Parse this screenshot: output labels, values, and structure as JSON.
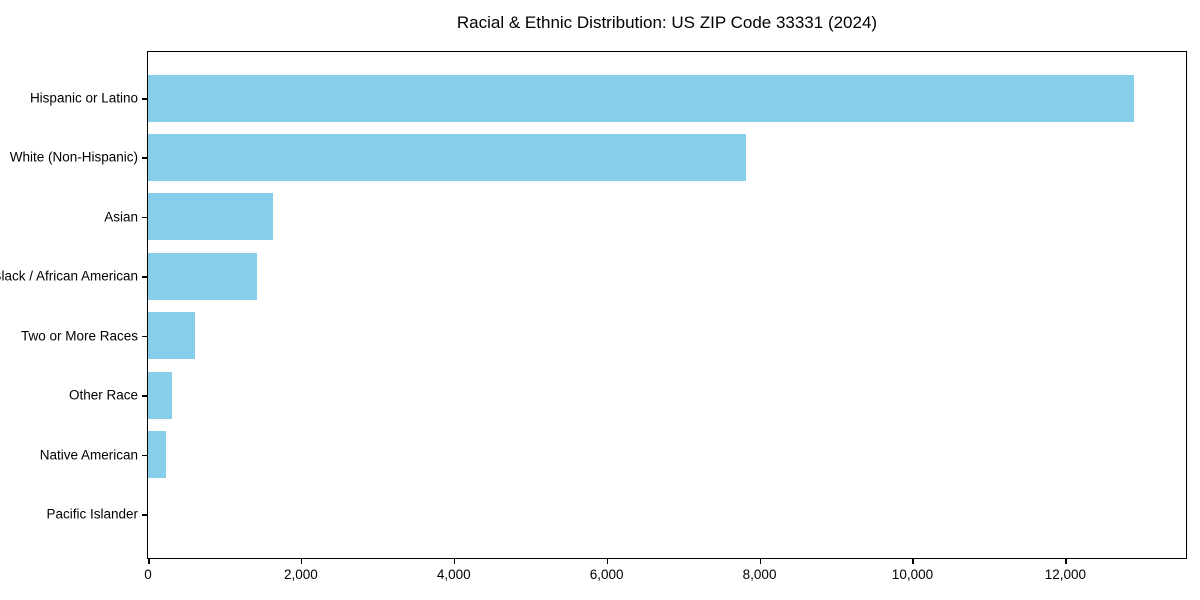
{
  "chart_data": {
    "type": "bar",
    "orientation": "horizontal",
    "title": "Racial & Ethnic Distribution: US ZIP Code 33331 (2024)",
    "categories": [
      "Hispanic or Latino",
      "White (Non-Hispanic)",
      "Asian",
      "Black / African American",
      "Two or More Races",
      "Other Race",
      "Native American",
      "Pacific Islander"
    ],
    "values": [
      12900,
      7820,
      1640,
      1420,
      610,
      310,
      230,
      0
    ],
    "xlabel": "",
    "ylabel": "",
    "xlim": [
      0,
      13565
    ],
    "x_ticks": [
      0,
      2000,
      4000,
      6000,
      8000,
      10000,
      12000
    ],
    "x_tick_labels": [
      "0",
      "2,000",
      "4,000",
      "6,000",
      "8,000",
      "10,000",
      "12,000"
    ],
    "bar_color": "#87CEEB",
    "grid": false,
    "legend_position": "none",
    "background_color": "#ffffff",
    "spine_color": "#000000"
  }
}
